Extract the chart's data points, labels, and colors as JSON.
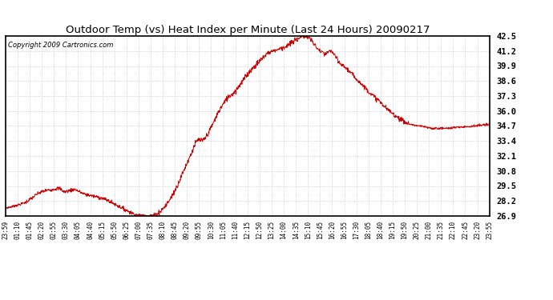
{
  "title": "Outdoor Temp (vs) Heat Index per Minute (Last 24 Hours) 20090217",
  "copyright": "Copyright 2009 Cartronics.com",
  "line_color": "#cc0000",
  "background_color": "#ffffff",
  "grid_color": "#bbbbbb",
  "ylim": [
    26.9,
    42.5
  ],
  "yticks": [
    26.9,
    28.2,
    29.5,
    30.8,
    32.1,
    33.4,
    34.7,
    36.0,
    37.3,
    38.6,
    39.9,
    41.2,
    42.5
  ],
  "xtick_labels": [
    "23:59",
    "01:10",
    "01:45",
    "02:20",
    "02:55",
    "03:30",
    "04:05",
    "04:40",
    "05:15",
    "05:50",
    "06:25",
    "07:00",
    "07:35",
    "08:10",
    "08:45",
    "09:20",
    "09:55",
    "10:30",
    "11:05",
    "11:40",
    "12:15",
    "12:50",
    "13:25",
    "14:00",
    "14:35",
    "15:10",
    "15:45",
    "16:20",
    "16:55",
    "17:30",
    "18:05",
    "18:40",
    "19:15",
    "19:50",
    "20:25",
    "21:00",
    "21:35",
    "22:10",
    "22:45",
    "23:20",
    "23:55"
  ],
  "n_points": 1440,
  "key_points": [
    [
      0,
      27.6
    ],
    [
      30,
      27.8
    ],
    [
      60,
      28.1
    ],
    [
      80,
      28.5
    ],
    [
      100,
      28.9
    ],
    [
      120,
      29.1
    ],
    [
      140,
      29.2
    ],
    [
      160,
      29.3
    ],
    [
      175,
      29.0
    ],
    [
      190,
      29.1
    ],
    [
      205,
      29.2
    ],
    [
      220,
      29.0
    ],
    [
      235,
      28.8
    ],
    [
      250,
      28.7
    ],
    [
      265,
      28.6
    ],
    [
      280,
      28.5
    ],
    [
      300,
      28.3
    ],
    [
      320,
      28.0
    ],
    [
      340,
      27.7
    ],
    [
      360,
      27.4
    ],
    [
      380,
      27.1
    ],
    [
      400,
      26.95
    ],
    [
      420,
      26.92
    ],
    [
      435,
      26.95
    ],
    [
      450,
      27.1
    ],
    [
      470,
      27.6
    ],
    [
      490,
      28.4
    ],
    [
      510,
      29.5
    ],
    [
      525,
      30.5
    ],
    [
      540,
      31.5
    ],
    [
      555,
      32.5
    ],
    [
      565,
      33.2
    ],
    [
      575,
      33.5
    ],
    [
      585,
      33.4
    ],
    [
      595,
      33.7
    ],
    [
      605,
      34.2
    ],
    [
      615,
      34.8
    ],
    [
      625,
      35.4
    ],
    [
      635,
      36.0
    ],
    [
      645,
      36.5
    ],
    [
      655,
      36.9
    ],
    [
      665,
      37.3
    ],
    [
      675,
      37.5
    ],
    [
      685,
      37.8
    ],
    [
      695,
      38.2
    ],
    [
      705,
      38.6
    ],
    [
      715,
      39.0
    ],
    [
      725,
      39.4
    ],
    [
      735,
      39.7
    ],
    [
      745,
      40.0
    ],
    [
      755,
      40.3
    ],
    [
      765,
      40.6
    ],
    [
      775,
      40.9
    ],
    [
      785,
      41.1
    ],
    [
      795,
      41.2
    ],
    [
      805,
      41.3
    ],
    [
      815,
      41.4
    ],
    [
      825,
      41.5
    ],
    [
      835,
      41.6
    ],
    [
      845,
      41.8
    ],
    [
      855,
      42.0
    ],
    [
      865,
      42.2
    ],
    [
      875,
      42.4
    ],
    [
      885,
      42.5
    ],
    [
      895,
      42.45
    ],
    [
      905,
      42.3
    ],
    [
      915,
      41.9
    ],
    [
      925,
      41.5
    ],
    [
      935,
      41.2
    ],
    [
      945,
      41.0
    ],
    [
      950,
      40.9
    ],
    [
      960,
      41.1
    ],
    [
      970,
      41.2
    ],
    [
      975,
      41.0
    ],
    [
      985,
      40.5
    ],
    [
      995,
      40.1
    ],
    [
      1010,
      39.8
    ],
    [
      1030,
      39.2
    ],
    [
      1050,
      38.6
    ],
    [
      1070,
      38.0
    ],
    [
      1090,
      37.4
    ],
    [
      1110,
      36.9
    ],
    [
      1130,
      36.3
    ],
    [
      1150,
      35.8
    ],
    [
      1170,
      35.4
    ],
    [
      1190,
      35.0
    ],
    [
      1210,
      34.8
    ],
    [
      1230,
      34.7
    ],
    [
      1250,
      34.6
    ],
    [
      1270,
      34.5
    ],
    [
      1290,
      34.5
    ],
    [
      1310,
      34.5
    ],
    [
      1330,
      34.55
    ],
    [
      1350,
      34.6
    ],
    [
      1370,
      34.65
    ],
    [
      1390,
      34.7
    ],
    [
      1410,
      34.75
    ],
    [
      1430,
      34.8
    ],
    [
      1439,
      34.8
    ]
  ]
}
